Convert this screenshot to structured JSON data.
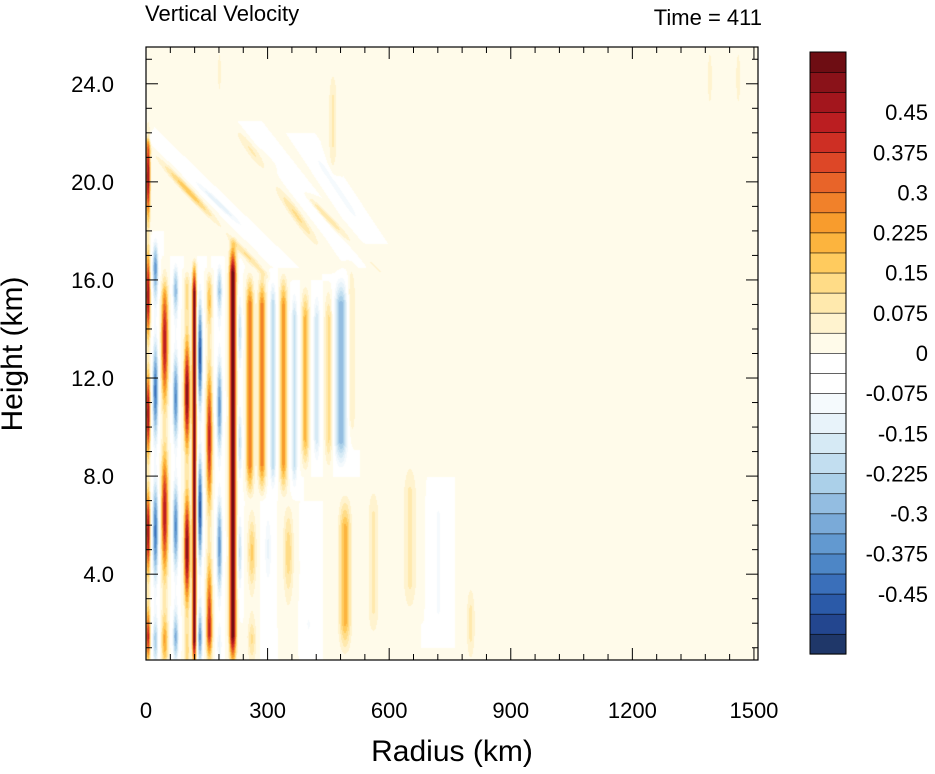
{
  "chart_data": {
    "type": "heatmap",
    "title": "Vertical Velocity",
    "time_label": "Time = 411",
    "xlabel": "Radius (km)",
    "ylabel": "Height (km)",
    "xlim": [
      0,
      1510
    ],
    "ylim": [
      0.5,
      25.5
    ],
    "xticks": [
      0,
      300,
      600,
      900,
      1200,
      1500
    ],
    "xtick_labels": [
      "0",
      "300",
      "600",
      "900",
      "1200",
      "1500"
    ],
    "yticks": [
      4,
      8,
      12,
      16,
      20,
      24
    ],
    "ytick_labels": [
      "4.0",
      "8.0",
      "12.0",
      "16.0",
      "20.0",
      "24.0"
    ],
    "colorbar": {
      "min": -0.5625,
      "max": 0.5625,
      "step": 0.0375,
      "labels": [
        "0.45",
        "0.375",
        "0.3",
        "0.225",
        "0.15",
        "0.075",
        "0",
        "-0.075",
        "-0.15",
        "-0.225",
        "-0.3",
        "-0.375",
        "-0.45"
      ],
      "label_values": [
        0.45,
        0.375,
        0.3,
        0.225,
        0.15,
        0.075,
        0,
        -0.075,
        -0.15,
        -0.225,
        -0.3,
        -0.375,
        -0.45
      ],
      "colors": [
        "#1f3769",
        "#23468f",
        "#2b5aa8",
        "#3a6fba",
        "#4d86c6",
        "#6299d0",
        "#7aaad8",
        "#93bde1",
        "#abd0e9",
        "#c2def0",
        "#d6eaf5",
        "#e8f3fa",
        "#f5fafd",
        "#ffffff",
        "#ffffff",
        "#fffbea",
        "#fff3cf",
        "#ffe9ad",
        "#ffdc87",
        "#ffcb5e",
        "#fcb43e",
        "#f89c2d",
        "#f1812a",
        "#e86429",
        "#dd4727",
        "#ce2f24",
        "#bb1e21",
        "#a3161d",
        "#8a1219",
        "#6e0d13"
      ]
    },
    "features": [
      {
        "r": 4,
        "z0": 1,
        "z1": 22,
        "w": 5,
        "amp": 0.5,
        "k": 1.3,
        "ph": 0.4
      },
      {
        "r": 22,
        "z0": 1,
        "z1": 17,
        "w": 7,
        "amp": -0.42,
        "k": 1.1,
        "ph": 1.5
      },
      {
        "r": 45,
        "z0": 1,
        "z1": 16,
        "w": 8,
        "amp": 0.45,
        "k": 0.9,
        "ph": 2.0
      },
      {
        "r": 72,
        "z0": 1,
        "z1": 16,
        "w": 7,
        "amp": -0.38,
        "k": 1.2,
        "ph": 0.7
      },
      {
        "r": 100,
        "z0": 0.8,
        "z1": 15.5,
        "w": 7,
        "amp": 0.52,
        "k": 1.0,
        "ph": 2.8
      },
      {
        "r": 118,
        "z0": 0.8,
        "z1": 16,
        "w": 5,
        "amp": 0.56,
        "k": 0.0,
        "ph": 0.0
      },
      {
        "r": 132,
        "z0": 1,
        "z1": 16,
        "w": 6,
        "amp": -0.48,
        "k": 1.0,
        "ph": 1.2
      },
      {
        "r": 155,
        "z0": 1,
        "z1": 15.5,
        "w": 7,
        "amp": 0.42,
        "k": 0.8,
        "ph": 0.2
      },
      {
        "r": 180,
        "z0": 1,
        "z1": 16,
        "w": 7,
        "amp": -0.35,
        "k": 1.1,
        "ph": 2.2
      },
      {
        "r": 213,
        "z0": 1,
        "z1": 16.8,
        "w": 8,
        "amp": 0.56,
        "k": 0.0,
        "ph": 0.0
      },
      {
        "r": 230,
        "z0": 3,
        "z1": 16,
        "w": 6,
        "amp": -0.2,
        "k": 1.4,
        "ph": 1.0
      },
      {
        "r": 255,
        "z0": 8,
        "z1": 15.5,
        "w": 9,
        "amp": 0.3,
        "k": 0.0,
        "ph": 0.0
      },
      {
        "r": 285,
        "z0": 8,
        "z1": 15.5,
        "w": 9,
        "amp": 0.28,
        "k": 0.0,
        "ph": 0.0
      },
      {
        "r": 312,
        "z0": 8,
        "z1": 15.5,
        "w": 8,
        "amp": -0.22,
        "k": 0.0,
        "ph": 0.0
      },
      {
        "r": 338,
        "z0": 8,
        "z1": 15.5,
        "w": 9,
        "amp": 0.25,
        "k": 0.0,
        "ph": 0.0
      },
      {
        "r": 365,
        "z0": 8,
        "z1": 15,
        "w": 8,
        "amp": -0.2,
        "k": 0.0,
        "ph": 0.0
      },
      {
        "r": 392,
        "z0": 9,
        "z1": 15,
        "w": 9,
        "amp": 0.2,
        "k": 0.0,
        "ph": 0.0
      },
      {
        "r": 420,
        "z0": 9,
        "z1": 15,
        "w": 9,
        "amp": -0.17,
        "k": 0.0,
        "ph": 0.0
      },
      {
        "r": 450,
        "z0": 9,
        "z1": 15,
        "w": 10,
        "amp": 0.13,
        "k": 0.0,
        "ph": 0.0
      },
      {
        "r": 480,
        "z0": 9,
        "z1": 15.5,
        "w": 16,
        "amp": -0.3,
        "k": 0.0,
        "ph": 0.0
      },
      {
        "r": 505,
        "z0": 10,
        "z1": 16,
        "w": 10,
        "amp": 0.09,
        "k": 0.0,
        "ph": 0.0
      },
      {
        "r": 260,
        "z0": 1,
        "z1": 7,
        "w": 10,
        "amp": 0.16,
        "k": 1.5,
        "ph": 0.5
      },
      {
        "r": 300,
        "z0": 1,
        "z1": 7,
        "w": 10,
        "amp": -0.12,
        "k": 1.3,
        "ph": 1.3
      },
      {
        "r": 350,
        "z0": 1.5,
        "z1": 7,
        "w": 12,
        "amp": 0.14,
        "k": 1.2,
        "ph": 2.0
      },
      {
        "r": 400,
        "z0": 1.5,
        "z1": 6,
        "w": 12,
        "amp": -0.1,
        "k": 1.0,
        "ph": 0.6
      },
      {
        "r": 490,
        "z0": 1.5,
        "z1": 6.5,
        "w": 14,
        "amp": 0.2,
        "k": 0.0,
        "ph": 0.0
      },
      {
        "r": 560,
        "z0": 2,
        "z1": 7,
        "w": 14,
        "amp": 0.08,
        "k": 0.0,
        "ph": 0.0
      },
      {
        "r": 650,
        "z0": 3,
        "z1": 8,
        "w": 16,
        "amp": 0.08,
        "k": 0.0,
        "ph": 0.0
      },
      {
        "r": 720,
        "z0": 2,
        "z1": 7,
        "w": 14,
        "amp": -0.08,
        "k": 0.0,
        "ph": 0.0
      },
      {
        "r": 800,
        "z0": 1,
        "z1": 3,
        "w": 10,
        "amp": 0.09,
        "k": 0.0,
        "ph": 0.0
      },
      {
        "r": 460,
        "z0": 21,
        "z1": 24,
        "w": 10,
        "amp": 0.08,
        "k": 0.0,
        "ph": 0.0
      },
      {
        "r": 180,
        "z0": 24,
        "z1": 25,
        "w": 5,
        "amp": 0.07,
        "k": 0.0,
        "ph": 0.0
      },
      {
        "r": 1390,
        "z0": 23.5,
        "z1": 25,
        "w": 6,
        "amp": 0.07,
        "k": 0.0,
        "ph": 0.0
      },
      {
        "r": 1460,
        "z0": 23.5,
        "z1": 25,
        "w": 6,
        "amp": 0.07,
        "k": 0.0,
        "ph": 0.0
      }
    ],
    "slanted_features": [
      {
        "r0": 0,
        "z0": 21.5,
        "r1": 260,
        "z1": 16.8,
        "w": 12,
        "amp": 0.18,
        "k": 1.0,
        "ph": 0.0
      },
      {
        "r0": 30,
        "z0": 21.5,
        "r1": 280,
        "z1": 17.5,
        "w": 12,
        "amp": -0.14,
        "k": 1.0,
        "ph": 1.0
      },
      {
        "r0": 250,
        "z0": 21.5,
        "r1": 440,
        "z1": 17,
        "w": 14,
        "amp": 0.12,
        "k": 1.0,
        "ph": 2.0
      },
      {
        "r0": 290,
        "z0": 21.5,
        "r1": 480,
        "z1": 17.5,
        "w": 14,
        "amp": -0.12,
        "k": 1.0,
        "ph": 0.5
      },
      {
        "r0": 330,
        "z0": 20.5,
        "r1": 550,
        "z1": 16.8,
        "w": 12,
        "amp": 0.14,
        "k": 1.0,
        "ph": 1.5
      },
      {
        "r0": 420,
        "z0": 21,
        "r1": 520,
        "z1": 18.5,
        "w": 12,
        "amp": -0.1,
        "k": 0.0,
        "ph": 0.0
      }
    ]
  }
}
